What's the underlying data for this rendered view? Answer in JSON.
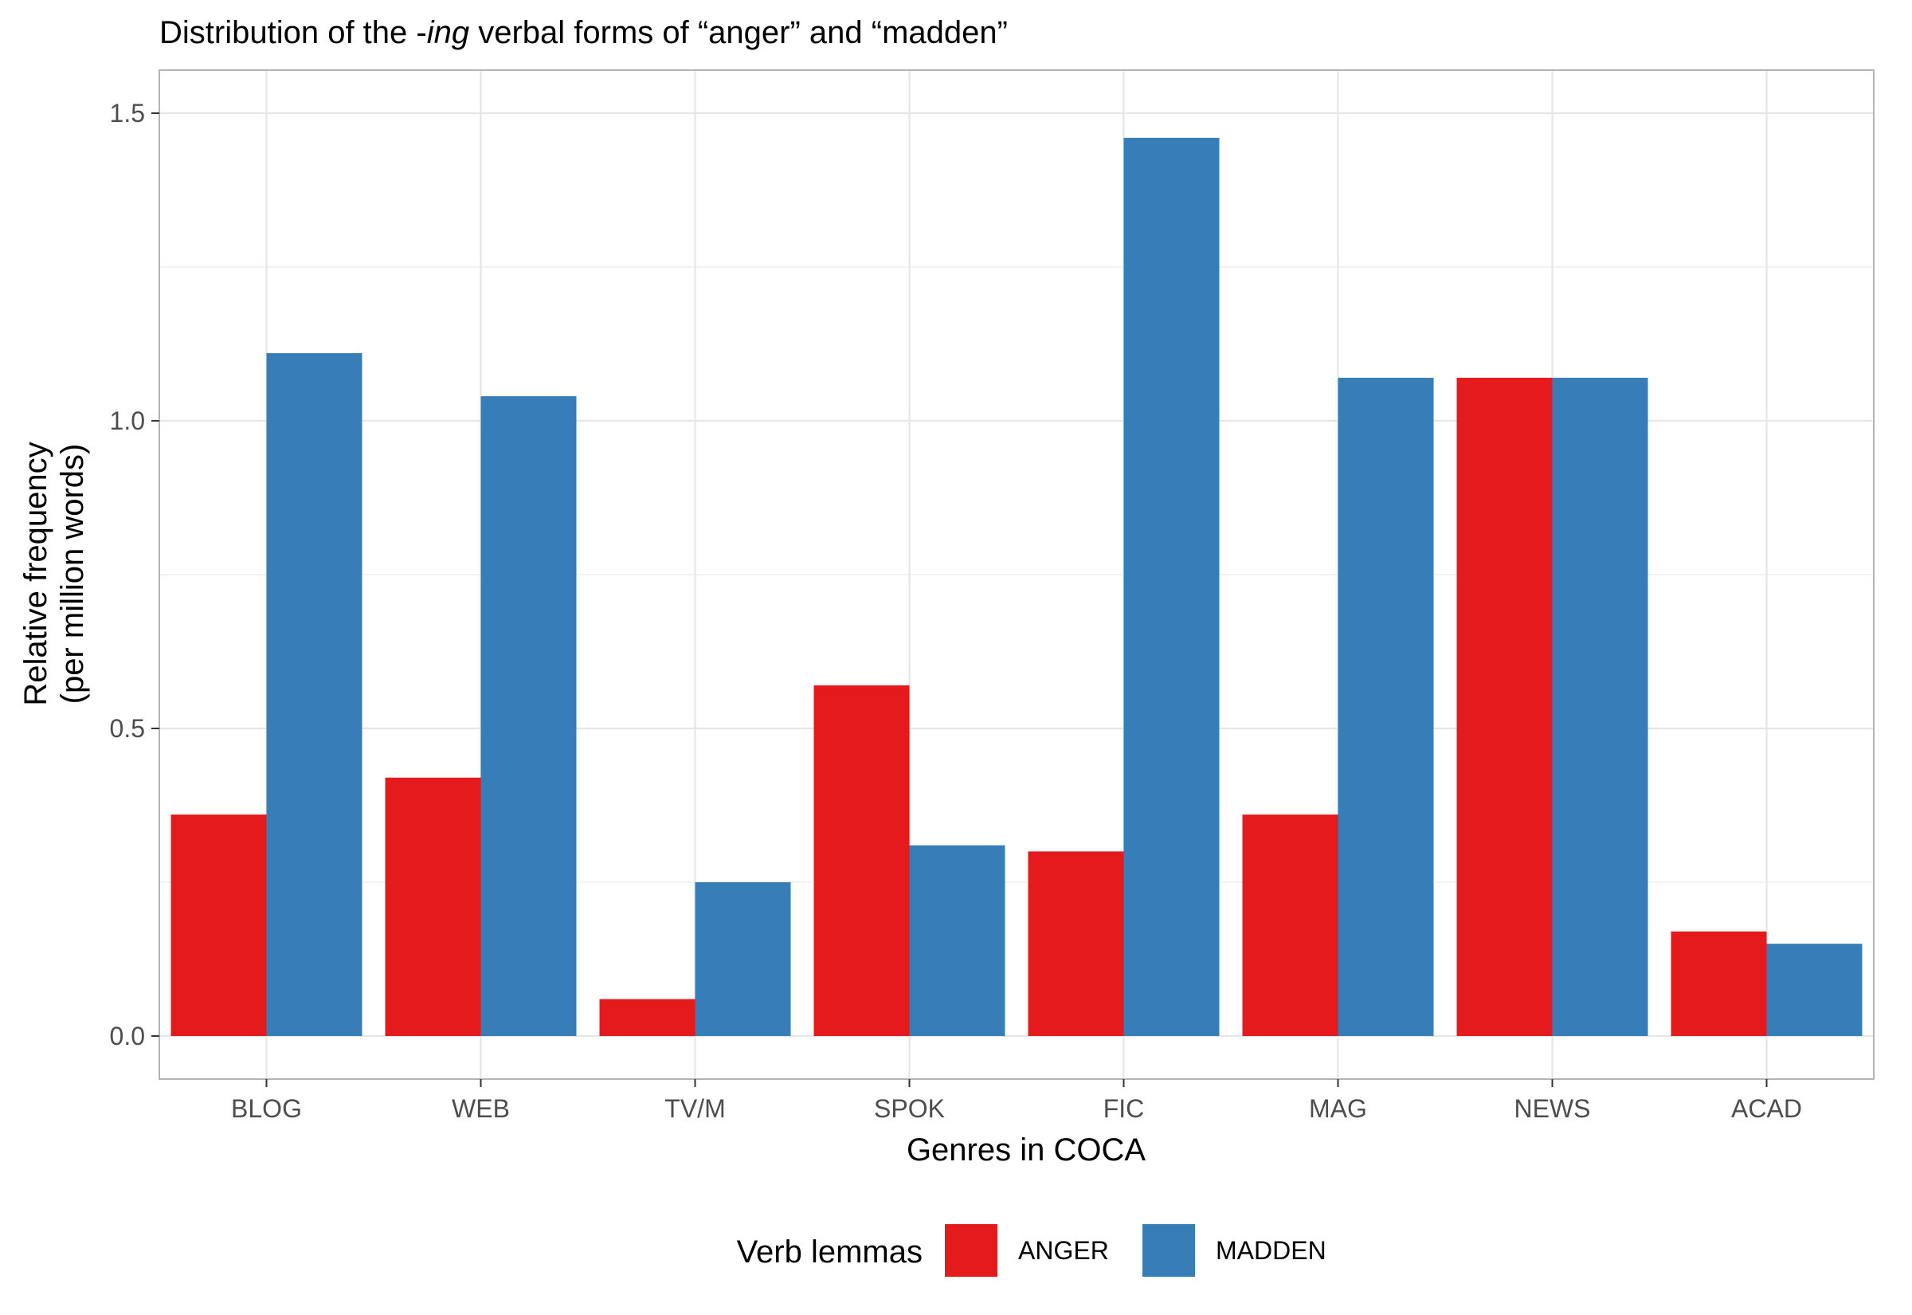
{
  "chart_data": {
    "type": "bar",
    "title": {
      "prefix": "Distribution of the -",
      "italic": "ing",
      "suffix": " verbal forms of “anger” and “madden”"
    },
    "xlabel": "Genres in COCA",
    "ylabel": [
      "Relative frequency",
      "(per million words)"
    ],
    "categories": [
      "BLOG",
      "WEB",
      "TV/M",
      "SPOK",
      "FIC",
      "MAG",
      "NEWS",
      "ACAD"
    ],
    "series": [
      {
        "name": "ANGER",
        "color": "#E41A1C",
        "values": [
          0.36,
          0.42,
          0.06,
          0.57,
          0.3,
          0.36,
          1.07,
          0.17
        ]
      },
      {
        "name": "MADDEN",
        "color": "#377EB8",
        "values": [
          1.11,
          1.04,
          0.25,
          0.31,
          1.46,
          1.07,
          1.07,
          0.15
        ]
      }
    ],
    "ylim": [
      -0.07,
      1.57
    ],
    "yticks": [
      "0.0",
      "0.5",
      "1.0",
      "1.5"
    ],
    "grid": true,
    "legend": {
      "title": "Verb lemmas",
      "placement": "bottom"
    }
  }
}
